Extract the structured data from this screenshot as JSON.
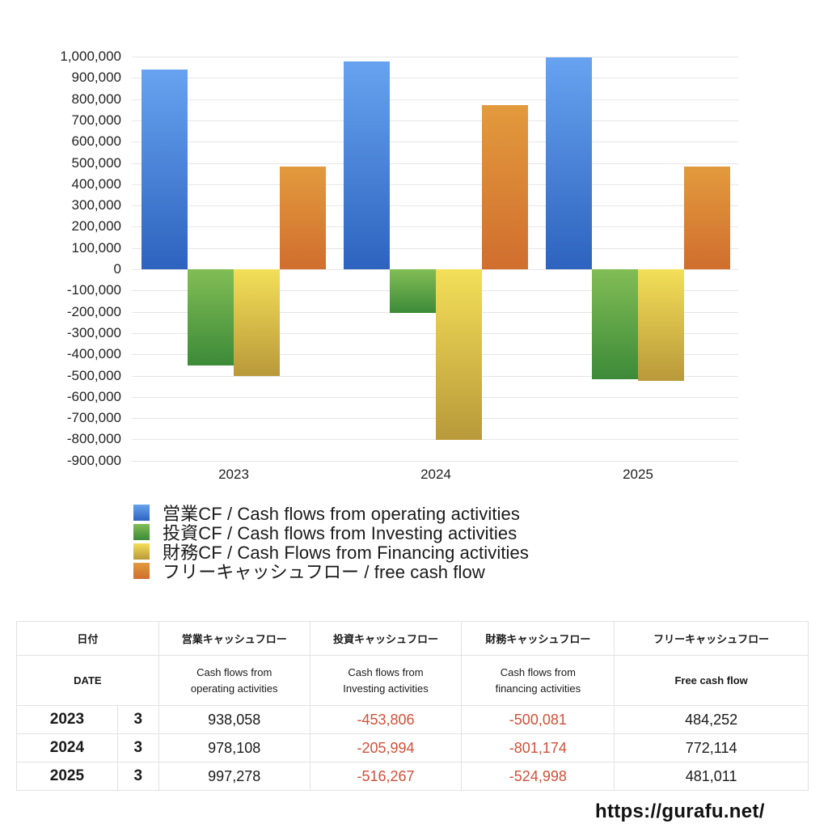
{
  "chart_data": {
    "type": "bar",
    "title": "",
    "xlabel": "",
    "ylabel": "",
    "categories": [
      "2023",
      "2024",
      "2025"
    ],
    "series": [
      {
        "name": "営業CF / Cash flows from operating activities",
        "color": "#3f7fd6",
        "values": [
          938058,
          978108,
          997278
        ]
      },
      {
        "name": "投資CF / Cash flows from Investing activities",
        "color": "#5aa548",
        "values": [
          -453806,
          -205994,
          -516267
        ]
      },
      {
        "name": "財務CF / Cash Flows from Financing activities",
        "color": "#e0c545",
        "values": [
          -500081,
          -801174,
          -524998
        ]
      },
      {
        "name": "フリーキャッシュフロー / free cash flow",
        "color": "#dd8533",
        "values": [
          484252,
          772114,
          481011
        ]
      }
    ],
    "ylim": [
      -900000,
      1000000
    ],
    "yticks": [
      "1,000,000",
      "900,000",
      "800,000",
      "700,000",
      "600,000",
      "500,000",
      "400,000",
      "300,000",
      "200,000",
      "100,000",
      "0",
      "-100,000",
      "-200,000",
      "-300,000",
      "-400,000",
      "-500,000",
      "-600,000",
      "-700,000",
      "-800,000",
      "-900,000"
    ],
    "grid": true,
    "legend_position": "bottom"
  },
  "legend": [
    {
      "label": "営業CF / Cash flows from operating activities"
    },
    {
      "label": "投資CF / Cash flows from Investing activities"
    },
    {
      "label": "財務CF / Cash Flows from Financing activities"
    },
    {
      "label": "フリーキャッシュフロー / free cash flow"
    }
  ],
  "table": {
    "header_jp": {
      "date": "日付",
      "operating": "営業キャッシュフロー",
      "investing": "投資キャッシュフロー",
      "financing": "財務キャッシュフロー",
      "free": "フリーキャッシュフロー"
    },
    "header_en": {
      "date": "DATE",
      "operating_1": "Cash flows from",
      "operating_2": "operating activities",
      "investing_1": "Cash flows from",
      "investing_2": "Investing activities",
      "financing_1": "Cash flows from",
      "financing_2": "financing activities",
      "free": "Free cash flow"
    },
    "rows": [
      {
        "year": "2023",
        "month": "3",
        "operating": "938,058",
        "investing": "-453,806",
        "financing": "-500,081",
        "free": "484,252"
      },
      {
        "year": "2024",
        "month": "3",
        "operating": "978,108",
        "investing": "-205,994",
        "financing": "-801,174",
        "free": "772,114"
      },
      {
        "year": "2025",
        "month": "3",
        "operating": "997,278",
        "investing": "-516,267",
        "financing": "-524,998",
        "free": "481,011"
      }
    ]
  },
  "footer": {
    "url": "https://gurafu.net/"
  }
}
